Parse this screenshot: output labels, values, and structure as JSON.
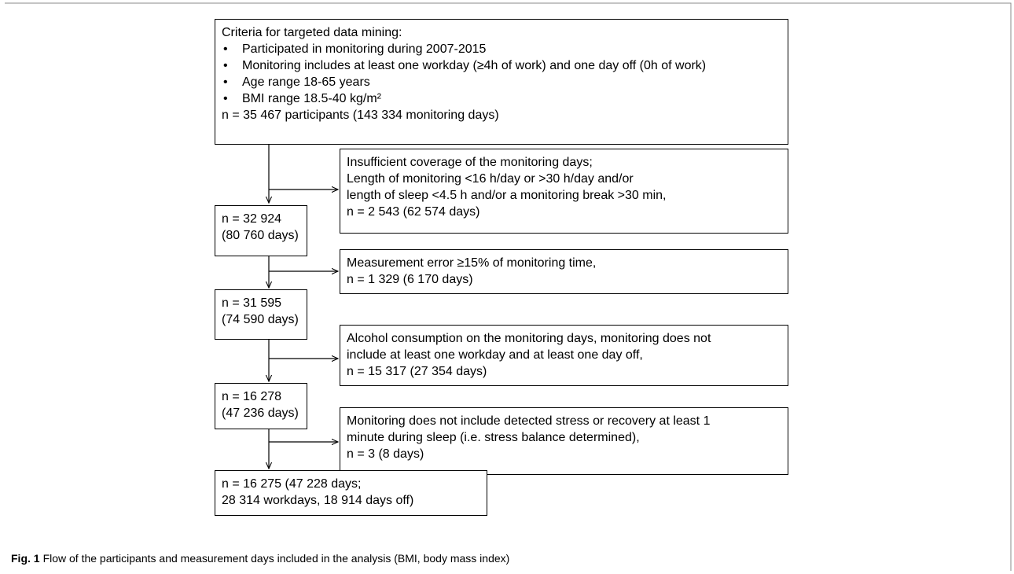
{
  "criteria": {
    "heading": "Criteria for targeted data mining:",
    "items": [
      "Participated in monitoring during 2007-2015",
      "Monitoring includes at least one workday (≥4h of work) and one day off (0h of work)",
      "Age range 18-65 years",
      "BMI range 18.5-40 kg/m²"
    ],
    "total": "n = 35 467 participants (143 334 monitoring days)"
  },
  "steps": [
    {
      "n": "n = 32 924",
      "days": "(80 760 days)"
    },
    {
      "n": "n = 31 595",
      "days": "(74 590 days)"
    },
    {
      "n": "n = 16 278",
      "days": "(47 236 days)"
    }
  ],
  "exclusions": [
    {
      "lines": [
        "Insufficient coverage of the monitoring days;",
        "Length of monitoring <16 h/day or >30 h/day and/or",
        "length of sleep <4.5 h and/or a monitoring break >30 min,",
        "n = 2 543 (62 574 days)"
      ]
    },
    {
      "lines": [
        "Measurement error ≥15% of monitoring time,",
        "n = 1 329 (6 170 days)"
      ]
    },
    {
      "lines": [
        "Alcohol consumption on the monitoring days, monitoring does not",
        "include at least one workday and at least one day off,",
        "n =  15 317 (27 354 days)"
      ]
    },
    {
      "lines": [
        "Monitoring does not include detected stress or recovery at least 1",
        "minute during sleep (i.e. stress balance determined),",
        "n = 3 (8 days)"
      ]
    }
  ],
  "final": {
    "line1": "n = 16 275  (47 228 days;",
    "line2": "28 314 workdays, 18 914 days off)"
  },
  "caption": {
    "label": "Fig. 1",
    "text": "Flow of the participants and measurement days included in the analysis (BMI, body mass index)"
  }
}
